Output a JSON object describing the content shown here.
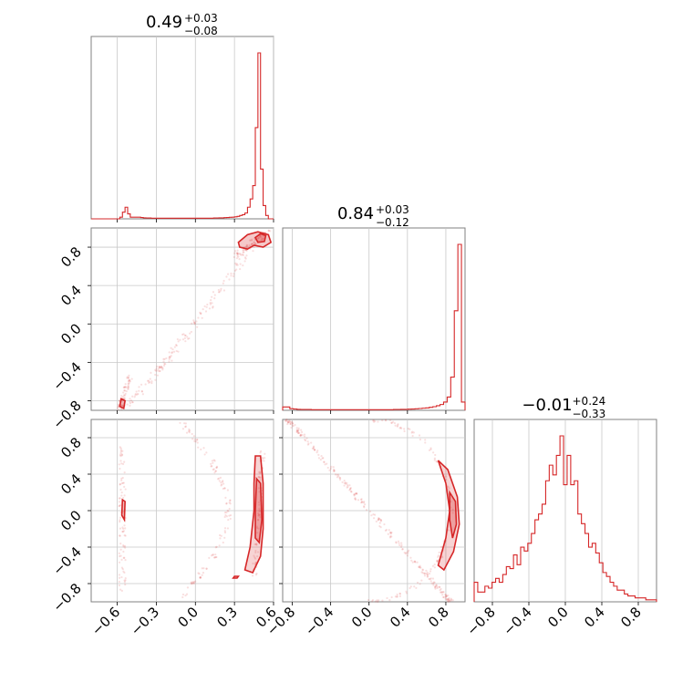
{
  "chart_data": {
    "type": "corner",
    "color": "#d62728",
    "grid": true,
    "panels": [
      {
        "id": "hist-1",
        "type": "histogram",
        "title": "0.49",
        "title_sup": "+0.03",
        "title_sub": "−0.08",
        "xlim": [
          -0.8,
          0.6
        ],
        "x": [
          -0.8,
          -0.78,
          -0.76,
          -0.74,
          -0.72,
          -0.7,
          -0.68,
          -0.66,
          -0.64,
          -0.62,
          -0.6,
          -0.58,
          -0.56,
          -0.54,
          -0.52,
          -0.5,
          -0.48,
          -0.46,
          -0.44,
          -0.42,
          -0.4,
          -0.38,
          -0.36,
          -0.34,
          -0.32,
          -0.3,
          -0.28,
          -0.26,
          -0.24,
          -0.22,
          -0.2,
          -0.18,
          -0.16,
          -0.14,
          -0.12,
          -0.1,
          -0.08,
          -0.06,
          -0.04,
          -0.02,
          0.0,
          0.02,
          0.04,
          0.06,
          0.08,
          0.1,
          0.12,
          0.14,
          0.16,
          0.18,
          0.2,
          0.22,
          0.24,
          0.26,
          0.28,
          0.3,
          0.32,
          0.34,
          0.36,
          0.38,
          0.4,
          0.42,
          0.44,
          0.46,
          0.48,
          0.5,
          0.52,
          0.54,
          0.56,
          0.58,
          0.6
        ],
        "values": [
          0,
          0,
          0,
          0,
          0,
          0,
          0,
          0,
          0,
          0,
          0,
          0.01,
          0.04,
          0.07,
          0.03,
          0.01,
          0.01,
          0.01,
          0.01,
          0.008,
          0.006,
          0.005,
          0.005,
          0.004,
          0.004,
          0.004,
          0.004,
          0.004,
          0.004,
          0.004,
          0.004,
          0.004,
          0.004,
          0.004,
          0.004,
          0.004,
          0.004,
          0.004,
          0.004,
          0.004,
          0.004,
          0.004,
          0.004,
          0.004,
          0.004,
          0.004,
          0.004,
          0.005,
          0.005,
          0.006,
          0.006,
          0.007,
          0.008,
          0.009,
          0.01,
          0.012,
          0.015,
          0.02,
          0.025,
          0.035,
          0.07,
          0.12,
          0.2,
          0.55,
          1.0,
          0.3,
          0.08,
          0.02,
          0.0,
          0.0
        ]
      },
      {
        "id": "scatter-2-1",
        "type": "scatter-density",
        "xlim": [
          -0.8,
          0.6
        ],
        "ylim": [
          -0.9,
          1.0
        ],
        "yticks": [
          -0.8,
          -0.4,
          0.0,
          0.4,
          0.8
        ],
        "yticklabels": [
          "−0.8",
          "−0.4",
          "0.0",
          "0.4",
          "0.8"
        ]
      },
      {
        "id": "hist-2",
        "type": "histogram",
        "title": "0.84",
        "title_sup": "+0.03",
        "title_sub": "−0.12",
        "xlim": [
          -0.9,
          1.0
        ],
        "values": [
          0.02,
          0.02,
          0.01,
          0.008,
          0.006,
          0.005,
          0.005,
          0.005,
          0.004,
          0.004,
          0.004,
          0.004,
          0.004,
          0.004,
          0.004,
          0.004,
          0.004,
          0.004,
          0.004,
          0.004,
          0.004,
          0.004,
          0.004,
          0.004,
          0.004,
          0.004,
          0.004,
          0.004,
          0.004,
          0.004,
          0.004,
          0.005,
          0.005,
          0.006,
          0.006,
          0.007,
          0.008,
          0.009,
          0.011,
          0.013,
          0.015,
          0.018,
          0.022,
          0.028,
          0.035,
          0.05,
          0.08,
          0.2,
          0.6,
          1.0,
          0.05
        ]
      },
      {
        "id": "scatter-3-1",
        "type": "scatter-density",
        "xlim": [
          -0.8,
          0.6
        ],
        "ylim": [
          -1.0,
          1.0
        ],
        "xticks": [
          -0.6,
          -0.3,
          0.0,
          0.3,
          0.6
        ],
        "xticklabels": [
          "−0.6",
          "−0.3",
          "0.0",
          "0.3",
          "0.6"
        ],
        "yticks": [
          -0.8,
          -0.4,
          0.0,
          0.4,
          0.8
        ],
        "yticklabels": [
          "−0.8",
          "−0.4",
          "0.0",
          "0.4",
          "0.8"
        ]
      },
      {
        "id": "scatter-3-2",
        "type": "scatter-density",
        "xlim": [
          -0.9,
          1.0
        ],
        "ylim": [
          -1.0,
          1.0
        ],
        "xticks": [
          -0.8,
          -0.4,
          0.0,
          0.4,
          0.8
        ],
        "xticklabels": [
          "−0.8",
          "−0.4",
          "0.0",
          "0.4",
          "0.8"
        ]
      },
      {
        "id": "hist-3",
        "type": "histogram",
        "title": "−0.01",
        "title_sup": "+0.24",
        "title_sub": "−0.33",
        "xlim": [
          -1.0,
          1.0
        ],
        "xticks": [
          -0.8,
          -0.4,
          0.0,
          0.4,
          0.8
        ],
        "xticklabels": [
          "−0.8",
          "−0.4",
          "0.0",
          "0.4",
          "0.8"
        ],
        "values": [
          0.1,
          0.05,
          0.05,
          0.08,
          0.07,
          0.1,
          0.12,
          0.1,
          0.14,
          0.18,
          0.17,
          0.24,
          0.19,
          0.28,
          0.26,
          0.3,
          0.35,
          0.42,
          0.45,
          0.5,
          0.62,
          0.7,
          0.65,
          0.75,
          0.85,
          0.6,
          0.75,
          0.6,
          0.62,
          0.45,
          0.4,
          0.35,
          0.28,
          0.3,
          0.25,
          0.2,
          0.15,
          0.13,
          0.1,
          0.08,
          0.06,
          0.06,
          0.04,
          0.03,
          0.03,
          0.02,
          0.02,
          0.02,
          0.01,
          0.01,
          0.01
        ]
      }
    ]
  }
}
